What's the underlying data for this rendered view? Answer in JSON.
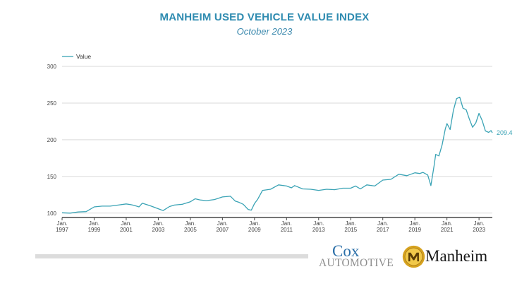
{
  "header": {
    "title": "MANHEIM USED VEHICLE VALUE INDEX",
    "subtitle": "October 2023"
  },
  "colors": {
    "line": "#3aa3b5",
    "title": "#2e8bb0",
    "grid": "#d9d9d9",
    "cox_blue": "#2b6fa8",
    "manheim_gold": "#d6a21f"
  },
  "logos": {
    "cox_line1": "Cox",
    "cox_line2": "AUTOMOTIVE",
    "manheim_text": "Manheim"
  },
  "chart_data": {
    "type": "line",
    "title": "MANHEIM USED VEHICLE VALUE INDEX",
    "subtitle": "October 2023",
    "ylim": [
      95,
      300
    ],
    "yticks": [
      100,
      150,
      200,
      250,
      300
    ],
    "xlim": [
      1997.0,
      2023.83
    ],
    "xticks": [
      {
        "x": 1997,
        "line1": "Jan.",
        "line2": "1997"
      },
      {
        "x": 1999,
        "line1": "Jan.",
        "line2": "1999"
      },
      {
        "x": 2001,
        "line1": "Jan.",
        "line2": "2001"
      },
      {
        "x": 2003,
        "line1": "Jan.",
        "line2": "2003"
      },
      {
        "x": 2005,
        "line1": "Jan.",
        "line2": "2005"
      },
      {
        "x": 2007,
        "line1": "Jan.",
        "line2": "2007"
      },
      {
        "x": 2009,
        "line1": "Jan.",
        "line2": "2009"
      },
      {
        "x": 2011,
        "line1": "Jan.",
        "line2": "2011"
      },
      {
        "x": 2013,
        "line1": "Jan.",
        "line2": "2013"
      },
      {
        "x": 2015,
        "line1": "Jan.",
        "line2": "2015"
      },
      {
        "x": 2017,
        "line1": "Jan.",
        "line2": "2017"
      },
      {
        "x": 2019,
        "line1": "Jan.",
        "line2": "2019"
      },
      {
        "x": 2021,
        "line1": "Jan.",
        "line2": "2021"
      },
      {
        "x": 2023,
        "line1": "Jan.",
        "line2": "2023"
      }
    ],
    "legend": "top-left",
    "grid": true,
    "end_label": "209.4",
    "series": [
      {
        "name": "Value",
        "x": [
          1997.0,
          1997.5,
          1998.0,
          1998.5,
          1999.0,
          1999.5,
          2000.0,
          2000.5,
          2001.0,
          2001.3,
          2001.5,
          2001.8,
          2002.0,
          2002.5,
          2003.0,
          2003.3,
          2003.7,
          2004.0,
          2004.5,
          2005.0,
          2005.3,
          2005.6,
          2006.0,
          2006.5,
          2007.0,
          2007.5,
          2007.8,
          2008.0,
          2008.3,
          2008.6,
          2008.8,
          2009.0,
          2009.2,
          2009.5,
          2010.0,
          2010.5,
          2011.0,
          2011.3,
          2011.5,
          2012.0,
          2012.5,
          2013.0,
          2013.5,
          2014.0,
          2014.5,
          2015.0,
          2015.3,
          2015.6,
          2016.0,
          2016.5,
          2017.0,
          2017.5,
          2018.0,
          2018.5,
          2019.0,
          2019.3,
          2019.5,
          2019.8,
          2020.0,
          2020.2,
          2020.3,
          2020.5,
          2020.7,
          2020.9,
          2021.0,
          2021.2,
          2021.4,
          2021.6,
          2021.8,
          2022.0,
          2022.2,
          2022.4,
          2022.6,
          2022.8,
          2023.0,
          2023.2,
          2023.4,
          2023.6,
          2023.75,
          2023.83
        ],
        "values": [
          100.5,
          100.0,
          101.5,
          102.0,
          108.5,
          109.5,
          109.5,
          111.0,
          112.5,
          111.5,
          110.5,
          108.5,
          113.5,
          110.0,
          106.0,
          103.5,
          109.0,
          111.0,
          112.0,
          115.5,
          119.5,
          118.0,
          117.0,
          118.5,
          122.0,
          123.0,
          116.5,
          115.0,
          112.0,
          105.0,
          104.0,
          113.0,
          119.0,
          131.0,
          132.5,
          138.5,
          137.0,
          134.5,
          137.5,
          133.0,
          132.5,
          131.0,
          132.5,
          132.0,
          134.0,
          134.0,
          137.0,
          133.0,
          138.5,
          137.0,
          145.0,
          146.0,
          153.0,
          151.0,
          155.0,
          154.0,
          155.5,
          152.0,
          137.5,
          165.0,
          180.0,
          178.0,
          193.0,
          215.0,
          222.0,
          214.0,
          240.0,
          256.0,
          258.0,
          243.0,
          241.0,
          228.0,
          217.0,
          223.0,
          236.0,
          226.0,
          212.0,
          210.0,
          212.5,
          209.4
        ]
      }
    ]
  }
}
